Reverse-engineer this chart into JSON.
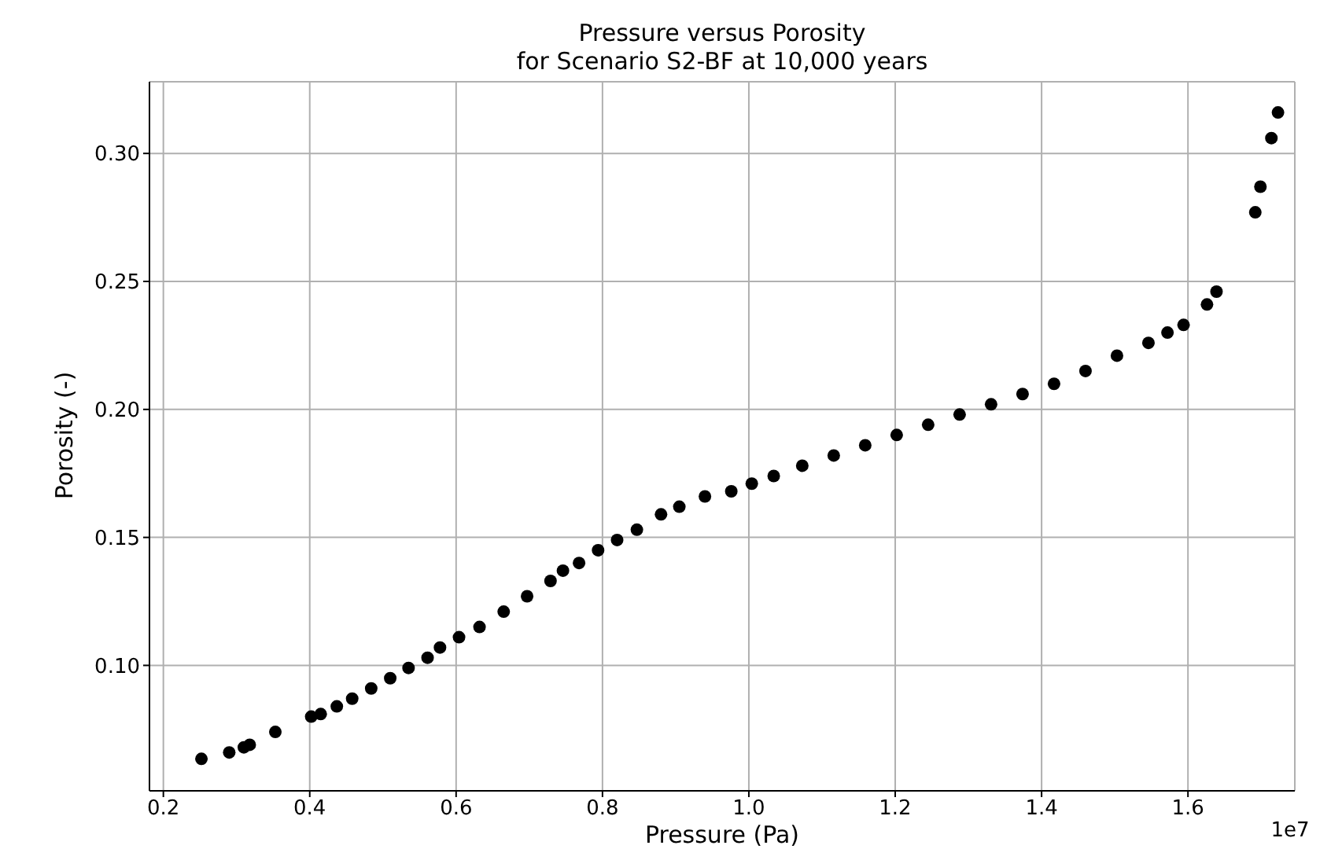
{
  "chart_data": {
    "type": "scatter",
    "title": "Pressure versus Porosity\nfor Scenario S2-BF at 10,000 years",
    "xlabel": "Pressure (Pa)",
    "ylabel": "Porosity (-)",
    "annotations": [
      "1e7"
    ],
    "x": [
      0.252,
      0.29,
      0.31,
      0.318,
      0.353,
      0.402,
      0.415,
      0.437,
      0.458,
      0.484,
      0.51,
      0.535,
      0.561,
      0.578,
      0.604,
      0.632,
      0.665,
      0.697,
      0.729,
      0.746,
      0.768,
      0.794,
      0.82,
      0.847,
      0.88,
      0.905,
      0.94,
      0.976,
      1.004,
      1.034,
      1.073,
      1.116,
      1.159,
      1.202,
      1.245,
      1.288,
      1.331,
      1.374,
      1.417,
      1.46,
      1.503,
      1.546,
      1.572,
      1.594,
      1.626,
      1.639,
      1.692,
      1.699,
      1.714,
      1.723
    ],
    "series": [
      {
        "color": "#000000",
        "values": [
          0.0635,
          0.066,
          0.068,
          0.069,
          0.074,
          0.08,
          0.081,
          0.084,
          0.087,
          0.091,
          0.095,
          0.099,
          0.103,
          0.107,
          0.111,
          0.115,
          0.121,
          0.127,
          0.133,
          0.137,
          0.14,
          0.145,
          0.149,
          0.153,
          0.159,
          0.162,
          0.166,
          0.168,
          0.171,
          0.174,
          0.178,
          0.182,
          0.186,
          0.19,
          0.194,
          0.198,
          0.202,
          0.206,
          0.21,
          0.215,
          0.221,
          0.226,
          0.23,
          0.233,
          0.241,
          0.246,
          0.277,
          0.287,
          0.306,
          0.316
        ]
      }
    ],
    "xlim": [
      0.181,
      1.746
    ],
    "xticks": [
      0.2,
      0.4,
      0.6,
      0.8,
      {
        "value": 1.0,
        "label": "1.0"
      },
      1.2,
      1.4,
      1.6
    ],
    "ylim": [
      0.051,
      0.328
    ],
    "yticks": [
      {
        "value": 0.1,
        "label": "0.10"
      },
      0.15,
      {
        "value": 0.2,
        "label": "0.20"
      },
      0.25,
      {
        "value": 0.3,
        "label": "0.30"
      }
    ],
    "grid": true,
    "marker": "circle",
    "legend": false
  }
}
